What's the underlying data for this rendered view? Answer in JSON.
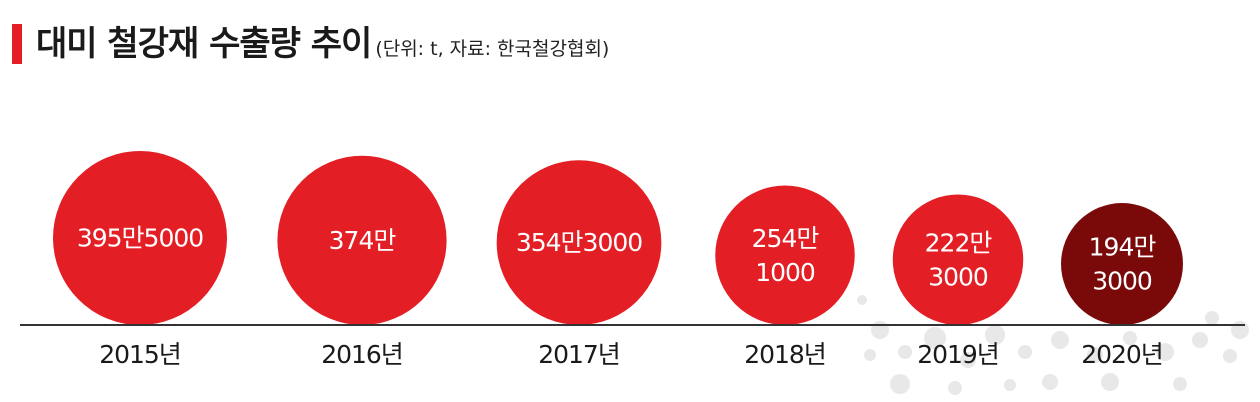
{
  "title": "대미 철강재 수출량 추이",
  "subtitle": "(단위: t, 자료: 한국철강협회)",
  "colors": {
    "accent": "#e31e24",
    "highlight": "#7a0a0a",
    "baseline": "#333333"
  },
  "chart_data": {
    "type": "bubble",
    "categories": [
      "2015년",
      "2016년",
      "2017년",
      "2018년",
      "2019년",
      "2020년"
    ],
    "values": [
      3955000,
      3740000,
      3543000,
      2541000,
      2223000,
      1943000
    ],
    "value_labels": [
      [
        "395만5000"
      ],
      [
        "374만"
      ],
      [
        "354만3000"
      ],
      [
        "254만",
        "1000"
      ],
      [
        "222만",
        "3000"
      ],
      [
        "194만",
        "3000"
      ]
    ],
    "highlight_index": 5,
    "unit": "t",
    "source": "한국철강협회"
  }
}
